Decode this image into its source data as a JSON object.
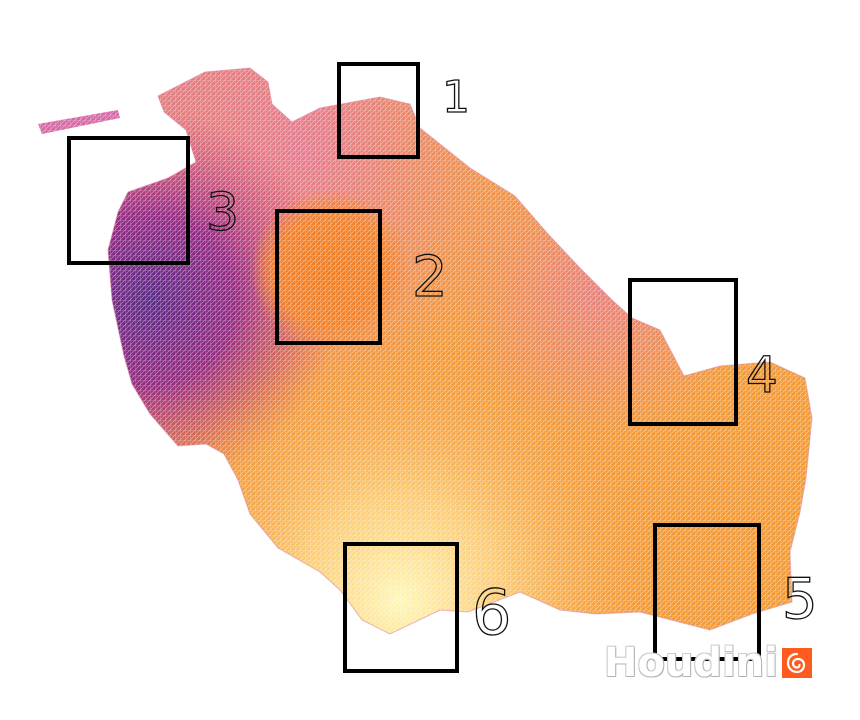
{
  "canvas": {
    "background_color": "#ffffff"
  },
  "surface": {
    "shape": "grid point cloud / mesh",
    "colormap": [
      "#5b2a86",
      "#8e1f86",
      "#c4307a",
      "#e06b85",
      "#f07f2a",
      "#f5a542",
      "#fde59c"
    ]
  },
  "regions": [
    {
      "id": "region-1",
      "label": "1"
    },
    {
      "id": "region-2",
      "label": "2"
    },
    {
      "id": "region-3",
      "label": "3"
    },
    {
      "id": "region-4",
      "label": "4"
    },
    {
      "id": "region-5",
      "label": "5"
    },
    {
      "id": "region-6",
      "label": "6"
    }
  ],
  "watermark": {
    "text": "Houdini",
    "icon": "houdini-swirl-icon",
    "accent_color": "#ff5a1f"
  }
}
